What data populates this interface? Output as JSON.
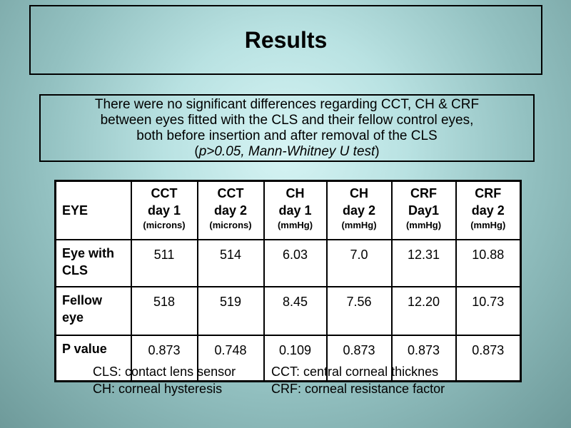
{
  "title": "Results",
  "summary": {
    "line1": "There were no significant differences regarding CCT, CH & CRF",
    "line2": "between eyes fitted with the CLS and their fellow control  eyes,",
    "line3": "both before insertion and after removal of the CLS",
    "line4_open": "(",
    "line4_italic": "p>0.05, Mann-Whitney U test",
    "line4_close": ")"
  },
  "table": {
    "eye_header": "EYE",
    "columns": [
      {
        "l1": "CCT",
        "l2": "day 1",
        "unit": "(microns)"
      },
      {
        "l1": "CCT",
        "l2": "day 2",
        "unit": "(microns)"
      },
      {
        "l1": "CH",
        "l2": "day 1",
        "unit": "(mmHg)"
      },
      {
        "l1": "CH",
        "l2": "day 2",
        "unit": "(mmHg)"
      },
      {
        "l1": "CRF",
        "l2": "Day1",
        "unit": "(mmHg)"
      },
      {
        "l1": "CRF",
        "l2": "day 2",
        "unit": "(mmHg)"
      }
    ],
    "rows": [
      {
        "label_l1": "Eye with",
        "label_l2": "CLS",
        "values": [
          "511",
          "514",
          "6.03",
          "7.0",
          "12.31",
          "10.88"
        ]
      },
      {
        "label_l1": "Fellow",
        "label_l2": "eye",
        "values": [
          "518",
          "519",
          "8.45",
          "7.56",
          "12.20",
          "10.73"
        ]
      },
      {
        "label_l1": "P value",
        "label_l2": "",
        "values": [
          "0.873",
          "0.748",
          "0.109",
          "0.873",
          "0.873",
          "0.873"
        ]
      }
    ]
  },
  "footer": {
    "cls": "CLS: contact lens sensor",
    "cct": "CCT: central corneal thicknes",
    "ch": "CH: corneal hysteresis",
    "crf": "CRF: corneal resistance factor"
  }
}
